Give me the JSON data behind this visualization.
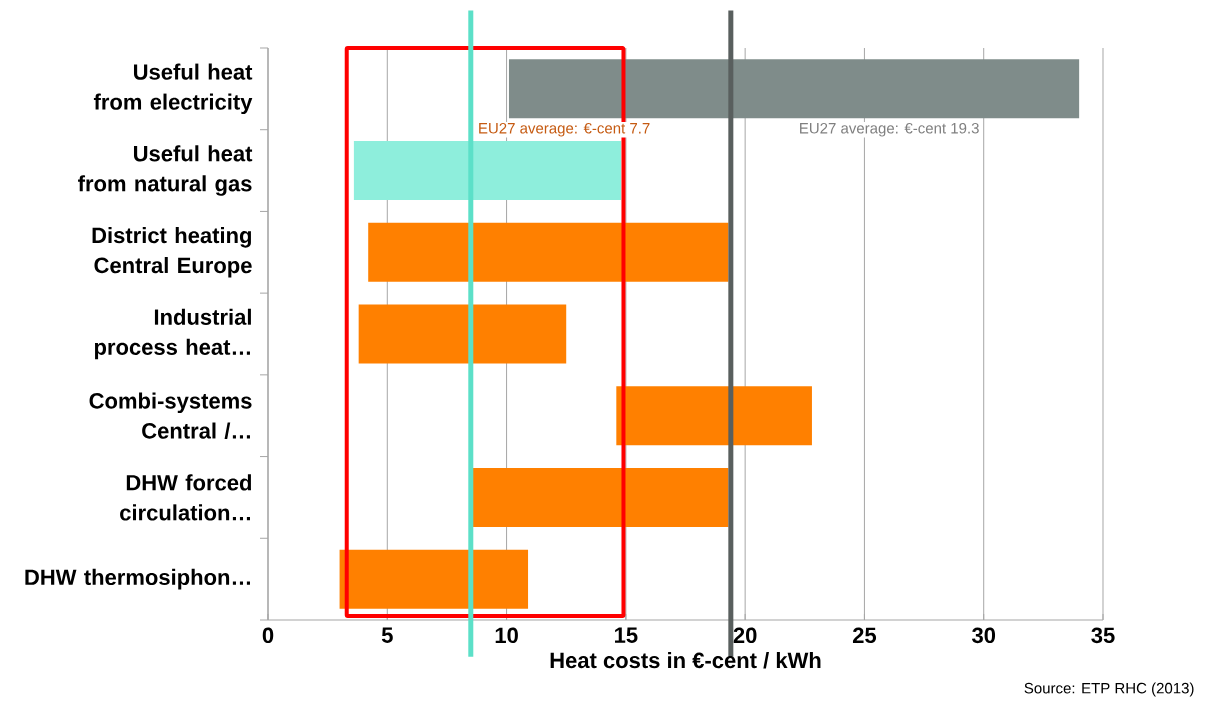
{
  "chart_data": {
    "type": "bar",
    "orientation": "horizontal",
    "xlabel": "Heat costs in €-cent / kWh",
    "categories": [
      "Useful heat from electricity",
      "Useful heat from natural gas",
      "District heating Central Europe",
      "Industrial process heat…",
      "Combi-systems Central /…",
      "DHW forced circulation…",
      "DHW thermosiphon…"
    ],
    "base": [
      10.1,
      3.6,
      4.2,
      3.8,
      14.6,
      8.5,
      3.0
    ],
    "values": [
      23.9,
      11.2,
      15.1,
      8.7,
      8.2,
      10.8,
      7.9
    ],
    "colors": [
      "#7f8c8a",
      "#8eeedc",
      "#ff8000",
      "#ff8000",
      "#ff8000",
      "#ff8000",
      "#ff8000"
    ],
    "xlim": [
      0,
      35
    ],
    "xticks": [
      0,
      5,
      10,
      15,
      20,
      25,
      30,
      35
    ],
    "grid": "x",
    "ref_lines": [
      {
        "axis": "x",
        "value": 8.5,
        "label": "EU27 average: €-cent 7.7",
        "color": "#5ce0c8"
      },
      {
        "axis": "x",
        "value": 19.4,
        "label": "EU27 average: €-cent 19.3",
        "color": "#595f5e"
      }
    ],
    "annotations": [
      "Source: ETP RHC (2013)"
    ]
  }
}
